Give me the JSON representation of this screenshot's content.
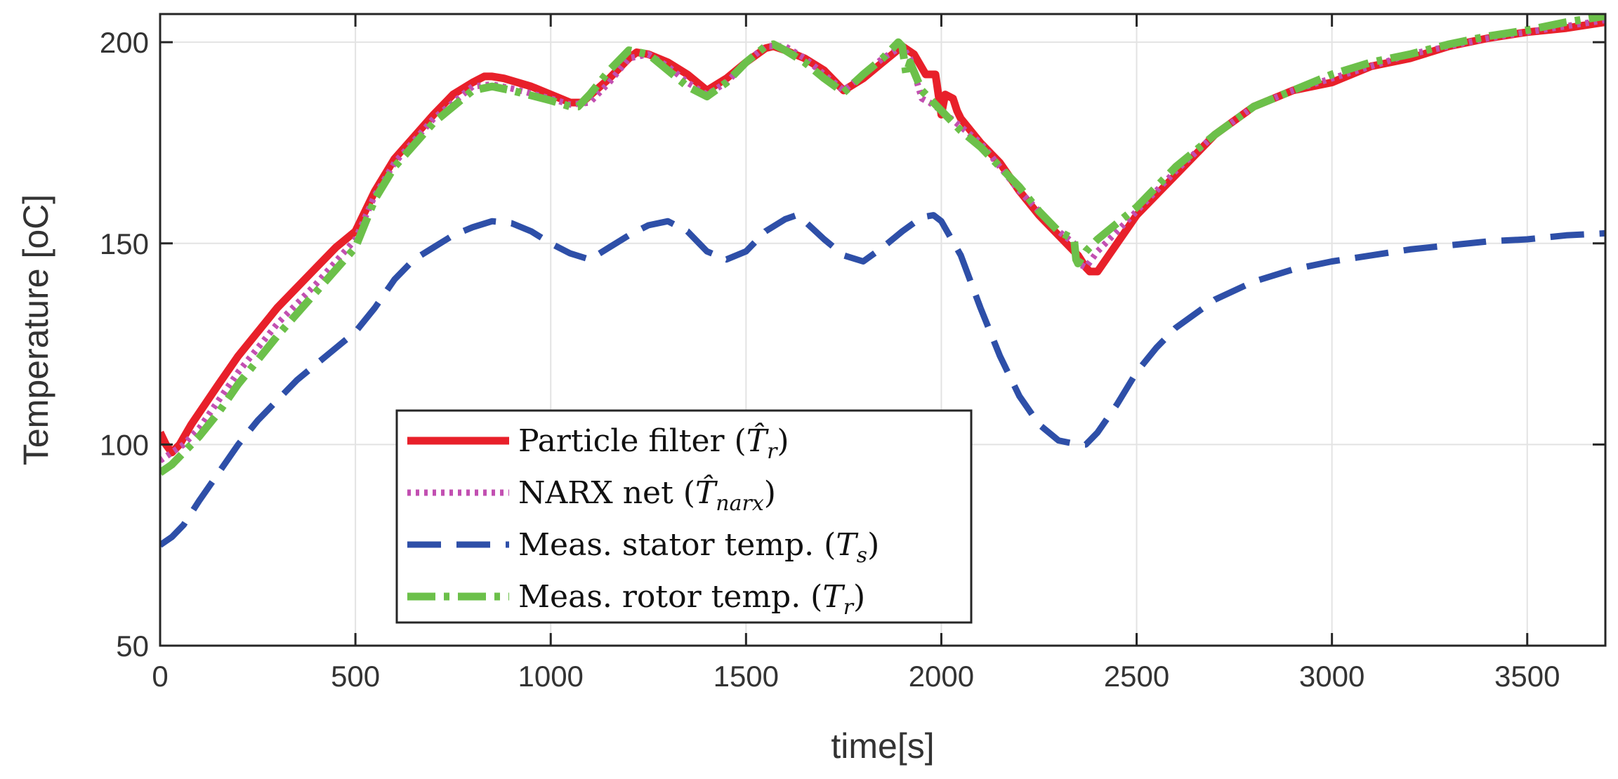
{
  "chart_data": {
    "type": "line",
    "xlabel": "time[s]",
    "ylabel": "Temperature [oC]",
    "xlim": [
      0,
      3700
    ],
    "ylim": [
      50,
      207
    ],
    "xticks": [
      0,
      500,
      1000,
      1500,
      2000,
      2500,
      3000,
      3500
    ],
    "yticks": [
      50,
      100,
      150,
      200
    ],
    "xtick_labels": [
      "0",
      "500",
      "1000",
      "1500",
      "2000",
      "2500",
      "3000",
      "3500"
    ],
    "ytick_labels": [
      "50",
      "100",
      "150",
      "200"
    ],
    "grid": true,
    "legend_position": "lower-center",
    "series": [
      {
        "name": "Particle filter",
        "legend_label": "Particle filter (",
        "legend_symbol": "T̂",
        "legend_subscript": "r",
        "legend_close": ")",
        "color": "#e8202a",
        "style": "solid",
        "x": [
          0,
          15,
          30,
          50,
          80,
          150,
          200,
          300,
          400,
          450,
          500,
          550,
          600,
          700,
          750,
          800,
          830,
          850,
          880,
          950,
          1000,
          1050,
          1080,
          1150,
          1200,
          1220,
          1250,
          1300,
          1350,
          1400,
          1450,
          1500,
          1550,
          1570,
          1600,
          1650,
          1700,
          1750,
          1800,
          1850,
          1900,
          1930,
          1960,
          1975,
          1985,
          2000,
          2010,
          2030,
          2040,
          2050,
          2100,
          2150,
          2200,
          2250,
          2300,
          2350,
          2370,
          2380,
          2400,
          2450,
          2500,
          2600,
          2700,
          2800,
          2900,
          3000,
          3100,
          3200,
          3300,
          3400,
          3500,
          3600,
          3700
        ],
        "y": [
          103,
          100,
          98,
          100,
          105,
          115,
          122,
          134,
          144,
          149,
          153,
          163,
          171,
          182,
          187,
          190,
          191.5,
          191.5,
          191,
          189,
          187,
          185,
          185,
          191,
          196,
          197.5,
          197,
          195,
          192,
          188,
          191,
          195,
          198.5,
          199,
          198,
          196,
          193,
          188,
          191,
          195,
          199,
          197,
          192,
          192,
          192,
          182,
          187,
          186,
          183,
          181,
          175,
          170,
          163,
          157,
          152,
          147,
          144,
          143,
          143,
          150,
          157,
          167,
          177,
          184,
          188,
          190,
          194,
          196,
          199,
          201,
          202.5,
          203.5,
          205
        ]
      },
      {
        "name": "NARX net",
        "legend_label": "NARX net (",
        "legend_symbol": "T̂",
        "legend_subscript": "narx",
        "legend_close": ")",
        "color": "#c24fb1",
        "style": "dotted",
        "x": [
          0,
          30,
          60,
          100,
          150,
          200,
          300,
          400,
          500,
          550,
          600,
          700,
          800,
          850,
          900,
          1000,
          1050,
          1100,
          1150,
          1200,
          1250,
          1300,
          1350,
          1400,
          1450,
          1500,
          1550,
          1600,
          1650,
          1700,
          1750,
          1800,
          1850,
          1900,
          1920,
          1950,
          1970,
          2000,
          2050,
          2100,
          2150,
          2200,
          2250,
          2300,
          2340,
          2350,
          2370,
          2400,
          2450,
          2500,
          2600,
          2700,
          2800,
          2900,
          3000,
          3100,
          3200,
          3300,
          3400,
          3500,
          3600,
          3700
        ],
        "y": [
          96,
          98,
          100,
          104,
          111,
          118,
          130,
          140,
          151,
          162,
          170,
          181,
          189,
          189.5,
          188.5,
          186,
          184.5,
          185,
          190,
          196,
          197,
          194,
          190,
          187,
          190,
          195,
          199,
          199,
          196,
          192,
          188,
          192,
          196,
          199,
          196,
          186,
          185,
          183,
          179,
          175,
          169,
          163,
          158,
          153,
          150,
          145,
          144,
          148,
          153,
          158,
          168,
          177,
          184,
          188,
          191,
          194,
          197,
          199,
          201,
          202.5,
          204,
          205.5
        ]
      },
      {
        "name": "Meas. stator temp.",
        "legend_label": "Meas. stator temp. (",
        "legend_symbol": "T",
        "legend_subscript": "s",
        "legend_close": ")",
        "color": "#2e4fa8",
        "style": "dashed",
        "x": [
          0,
          30,
          60,
          100,
          150,
          200,
          250,
          300,
          350,
          400,
          450,
          500,
          550,
          600,
          650,
          700,
          750,
          800,
          850,
          900,
          950,
          1000,
          1050,
          1100,
          1150,
          1200,
          1250,
          1300,
          1350,
          1400,
          1450,
          1500,
          1550,
          1600,
          1630,
          1650,
          1700,
          1750,
          1800,
          1850,
          1900,
          1950,
          1980,
          2000,
          2050,
          2100,
          2150,
          2200,
          2250,
          2300,
          2350,
          2370,
          2400,
          2450,
          2500,
          2550,
          2600,
          2700,
          2800,
          2900,
          3000,
          3100,
          3200,
          3300,
          3400,
          3500,
          3600,
          3700
        ],
        "y": [
          75,
          77,
          80,
          86,
          93,
          100,
          106,
          111,
          116,
          120,
          124,
          128,
          134,
          141,
          146,
          149,
          152,
          154,
          155.5,
          155,
          153,
          150,
          147.5,
          146,
          149,
          152,
          154.5,
          155.5,
          153,
          148,
          146,
          148,
          153,
          156,
          157,
          155.5,
          151,
          147,
          145.5,
          149,
          153,
          156.5,
          157,
          155.5,
          147,
          134,
          122,
          112,
          105,
          101,
          100,
          100,
          103,
          110,
          118,
          124,
          129,
          136,
          140.5,
          143.5,
          145.5,
          147,
          148.5,
          149.5,
          150.5,
          151,
          152,
          152.5
        ]
      },
      {
        "name": "Meas. rotor temp.",
        "legend_label": "Meas. rotor temp. (",
        "legend_symbol": "T",
        "legend_subscript": "r",
        "legend_close": ")",
        "color": "#6cc04a",
        "style": "dashdot",
        "x": [
          0,
          30,
          60,
          100,
          150,
          200,
          300,
          400,
          500,
          550,
          600,
          700,
          800,
          850,
          900,
          1000,
          1050,
          1070,
          1100,
          1150,
          1200,
          1250,
          1300,
          1350,
          1400,
          1450,
          1500,
          1550,
          1570,
          1600,
          1650,
          1700,
          1750,
          1800,
          1850,
          1890,
          1900,
          1910,
          1920,
          1950,
          2000,
          2050,
          2100,
          2150,
          2200,
          2250,
          2300,
          2340,
          2345,
          2350,
          2370,
          2400,
          2450,
          2500,
          2600,
          2700,
          2800,
          2900,
          3000,
          3100,
          3200,
          3300,
          3400,
          3500,
          3600,
          3700
        ],
        "y": [
          93,
          95,
          98,
          102,
          108,
          115,
          127,
          138,
          149,
          161,
          169,
          180,
          188,
          189,
          188,
          185.5,
          184,
          184,
          187,
          193,
          198,
          197,
          193,
          189,
          186.5,
          190,
          195,
          199,
          199.5,
          198,
          195,
          191,
          187.5,
          192,
          196,
          200,
          199,
          192,
          195,
          188,
          183,
          178,
          174,
          169,
          164,
          158,
          153,
          151,
          146,
          145,
          148,
          151,
          155,
          159,
          169,
          177,
          184,
          188,
          192,
          195,
          197,
          199.5,
          201.5,
          203,
          205,
          206.5
        ]
      }
    ]
  }
}
